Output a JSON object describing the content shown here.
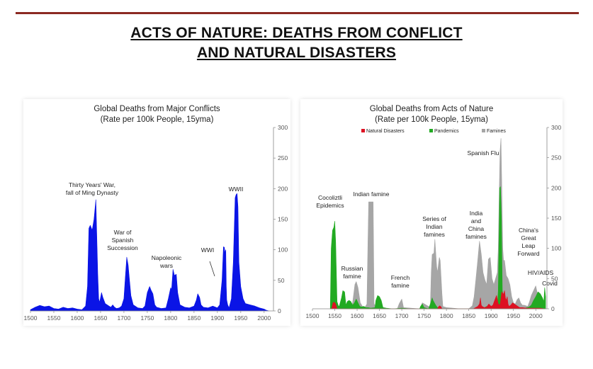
{
  "page": {
    "title_line1": "ACTS OF NATURE: DEATHS FROM CONFLICT",
    "title_line2": "AND NATURAL DISASTERS"
  },
  "chart_data": [
    {
      "type": "area",
      "title": "Global Deaths from Major Conflicts",
      "subtitle": "(Rate per 100k People, 15yma)",
      "xlabel": "",
      "ylabel": "",
      "xlim": [
        1500,
        2020
      ],
      "ylim": [
        0,
        300
      ],
      "y_axis_side": "right",
      "xticks": [
        1500,
        1550,
        1600,
        1650,
        1700,
        1750,
        1800,
        1850,
        1900,
        1950,
        2000
      ],
      "yticks": [
        0,
        50,
        100,
        150,
        200,
        250,
        300
      ],
      "colors": {
        "fill": "#0a14e6"
      },
      "series": [
        {
          "x": [
            1500,
            1510,
            1520,
            1530,
            1540,
            1550,
            1560,
            1570,
            1580,
            1590,
            1600,
            1610,
            1618,
            1622,
            1625,
            1628,
            1632,
            1636,
            1640,
            1644,
            1646,
            1648,
            1652,
            1655,
            1660,
            1664,
            1668,
            1672,
            1676,
            1680,
            1684,
            1690,
            1695,
            1700,
            1703,
            1706,
            1709,
            1712,
            1715,
            1720,
            1730,
            1740,
            1745,
            1750,
            1755,
            1758,
            1762,
            1766,
            1770,
            1780,
            1790,
            1795,
            1800,
            1802,
            1805,
            1808,
            1812,
            1815,
            1820,
            1830,
            1840,
            1850,
            1855,
            1858,
            1862,
            1865,
            1870,
            1880,
            1890,
            1900,
            1905,
            1910,
            1913,
            1915,
            1916,
            1918,
            1919,
            1920,
            1922,
            1925,
            1930,
            1934,
            1938,
            1940,
            1942,
            1944,
            1946,
            1950,
            1955,
            1960,
            1970,
            1980,
            1990,
            2000,
            2005,
            2010
          ],
          "y": [
            2,
            6,
            9,
            7,
            8,
            4,
            3,
            6,
            4,
            5,
            3,
            2,
            8,
            40,
            135,
            140,
            132,
            150,
            182,
            60,
            20,
            14,
            30,
            22,
            12,
            10,
            8,
            6,
            10,
            6,
            4,
            5,
            8,
            20,
            55,
            88,
            75,
            50,
            25,
            10,
            5,
            4,
            8,
            30,
            40,
            34,
            28,
            10,
            6,
            4,
            5,
            20,
            38,
            35,
            68,
            58,
            60,
            30,
            10,
            6,
            5,
            8,
            18,
            28,
            22,
            10,
            6,
            5,
            8,
            5,
            10,
            50,
            105,
            104,
            95,
            100,
            40,
            18,
            10,
            5,
            20,
            80,
            185,
            190,
            192,
            170,
            80,
            40,
            20,
            12,
            10,
            8,
            5,
            3,
            1,
            0
          ]
        }
      ],
      "annotations": [
        "Thirty Years' War,",
        "fall of Ming Dynasty",
        "War of",
        "Spanish",
        "Succession",
        "Napoleonic",
        "wars",
        "WWI",
        "WWII"
      ]
    },
    {
      "type": "area",
      "title": "Global Deaths from Acts of Nature",
      "subtitle": "(Rate per 100k People, 15yma)",
      "xlabel": "",
      "ylabel": "",
      "xlim": [
        1500,
        2025
      ],
      "ylim": [
        0,
        300
      ],
      "y_axis_side": "right",
      "xticks": [
        1500,
        1550,
        1600,
        1650,
        1700,
        1750,
        1800,
        1850,
        1900,
        1950,
        2000
      ],
      "yticks": [
        0,
        50,
        100,
        150,
        200,
        250,
        300
      ],
      "legend": {
        "placement": "top",
        "entries": [
          "Natural Disasters",
          "Pandemics",
          "Famines"
        ]
      },
      "series": [
        {
          "name": "Famines",
          "color": "#a6a6a6",
          "x": [
            1540,
            1560,
            1572,
            1576,
            1580,
            1585,
            1590,
            1595,
            1598,
            1602,
            1607,
            1612,
            1618,
            1622,
            1624,
            1626,
            1636,
            1638,
            1642,
            1650,
            1660,
            1670,
            1690,
            1694,
            1700,
            1704,
            1740,
            1742,
            1746,
            1760,
            1764,
            1766,
            1768,
            1772,
            1774,
            1778,
            1780,
            1784,
            1786,
            1790,
            1792,
            1800,
            1830,
            1850,
            1858,
            1862,
            1866,
            1870,
            1874,
            1878,
            1882,
            1886,
            1890,
            1894,
            1898,
            1902,
            1906,
            1910,
            1914,
            1916,
            1918,
            1920,
            1922,
            1924,
            1926,
            1928,
            1930,
            1934,
            1938,
            1942,
            1946,
            1950,
            1954,
            1958,
            1962,
            1966,
            1970,
            1974,
            1978,
            1982,
            1986,
            1990,
            1995,
            2000,
            2005,
            2010,
            2015,
            2020
          ],
          "y": [
            0,
            0,
            0,
            8,
            4,
            2,
            10,
            40,
            45,
            35,
            10,
            4,
            3,
            8,
            100,
            177,
            177,
            8,
            4,
            3,
            2,
            0,
            0,
            8,
            16,
            2,
            0,
            2,
            10,
            4,
            3,
            60,
            90,
            92,
            115,
            70,
            60,
            85,
            80,
            25,
            4,
            2,
            0,
            0,
            5,
            20,
            50,
            80,
            112,
            90,
            60,
            48,
            40,
            82,
            85,
            50,
            40,
            50,
            60,
            100,
            180,
            260,
            282,
            200,
            100,
            80,
            80,
            55,
            50,
            40,
            20,
            10,
            8,
            15,
            18,
            10,
            6,
            6,
            5,
            4,
            12,
            22,
            30,
            38,
            20,
            10,
            4,
            1
          ]
        },
        {
          "name": "Pandemics",
          "color": "#22aa22",
          "x": [
            1540,
            1542,
            1545,
            1548,
            1550,
            1552,
            1555,
            1558,
            1560,
            1565,
            1568,
            1572,
            1575,
            1578,
            1582,
            1586,
            1590,
            1594,
            1598,
            1602,
            1606,
            1610,
            1615,
            1620,
            1625,
            1630,
            1640,
            1642,
            1646,
            1650,
            1654,
            1658,
            1665,
            1680,
            1700,
            1720,
            1740,
            1742,
            1746,
            1750,
            1760,
            1764,
            1768,
            1770,
            1776,
            1780,
            1790,
            1800,
            1850,
            1860,
            1870,
            1880,
            1890,
            1900,
            1905,
            1910,
            1914,
            1916,
            1918,
            1919,
            1921,
            1923,
            1925,
            1930,
            1940,
            1950,
            1960,
            1970,
            1975,
            1980,
            1985,
            1990,
            1995,
            2000,
            2005,
            2010,
            2015,
            2018,
            2020,
            2022
          ],
          "y": [
            0,
            100,
            130,
            135,
            145,
            110,
            12,
            5,
            4,
            18,
            30,
            28,
            6,
            12,
            14,
            12,
            6,
            10,
            16,
            10,
            4,
            3,
            4,
            2,
            2,
            1,
            2,
            14,
            22,
            20,
            14,
            2,
            1,
            0,
            1,
            0,
            0,
            4,
            8,
            2,
            0,
            8,
            18,
            14,
            6,
            2,
            0,
            0,
            0,
            0,
            0,
            0,
            4,
            2,
            2,
            2,
            5,
            30,
            130,
            200,
            202,
            150,
            30,
            8,
            4,
            2,
            1,
            1,
            1,
            2,
            3,
            6,
            14,
            20,
            28,
            25,
            18,
            12,
            35,
            20
          ]
        },
        {
          "name": "Natural Disasters",
          "color": "#dd1122",
          "x": [
            1540,
            1543,
            1546,
            1548,
            1550,
            1552,
            1555,
            1560,
            1600,
            1780,
            1782,
            1785,
            1788,
            1790,
            1850,
            1860,
            1870,
            1874,
            1876,
            1878,
            1880,
            1885,
            1890,
            1895,
            1900,
            1904,
            1908,
            1912,
            1916,
            1920,
            1924,
            1928,
            1930,
            1932,
            1934,
            1936,
            1938,
            1940,
            1944,
            1948,
            1952,
            1956,
            1960,
            1964,
            1970,
            1980,
            1990,
            2000,
            2010,
            2020
          ],
          "y": [
            0,
            0,
            10,
            11,
            10,
            8,
            0,
            0,
            0,
            0,
            3,
            5,
            3,
            0,
            0,
            0,
            4,
            8,
            18,
            6,
            4,
            2,
            3,
            8,
            4,
            6,
            14,
            22,
            8,
            6,
            28,
            24,
            30,
            18,
            14,
            20,
            8,
            4,
            6,
            10,
            8,
            6,
            4,
            2,
            2,
            1,
            1,
            1,
            1,
            0
          ]
        }
      ],
      "annotations": [
        "Cocoliztli",
        "Epidemics",
        "Russian",
        "famine",
        "Indian famine",
        "French",
        "famine",
        "Series of",
        "Indian",
        "famines",
        "India",
        "and",
        "China",
        "famines",
        "Spanish Flu",
        "China's",
        "Great",
        "Leap",
        "Forward",
        "HIV/AIDS",
        "Covid"
      ]
    }
  ]
}
